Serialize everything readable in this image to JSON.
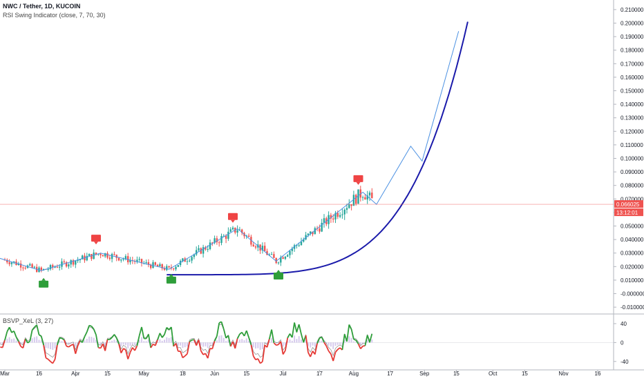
{
  "header": {
    "title": "NWC / Tether, 1D, KUCOIN",
    "indicator": "RSI Swing Indicator (close, 7, 70, 30)",
    "oscillator": "BSVP_XeL (3, 27)"
  },
  "price_badge": {
    "value": "0.066025",
    "countdown": "13:12:01"
  },
  "colors": {
    "up": "#26a69a",
    "down": "#ef5350",
    "trend_line": "#4a90e2",
    "curve": "#1a1aaa",
    "price_line": "#ef5350",
    "osc_green": "#2e9e3a",
    "osc_red": "#e53935",
    "signal_up": "#2e9e3a",
    "signal_down": "#ef4444"
  },
  "chart_data": {
    "type": "candlestick",
    "price_axis": {
      "ticks": [
        "0.210000",
        "0.200000",
        "0.190000",
        "0.180000",
        "0.170000",
        "0.160000",
        "0.150000",
        "0.140000",
        "0.130000",
        "0.120000",
        "0.110000",
        "0.100000",
        "0.090000",
        "0.080000",
        "0.070000",
        "0.060000",
        "0.050000",
        "0.040000",
        "0.030000",
        "0.020000",
        "0.010000",
        "-0.000000",
        "-0.010000"
      ],
      "ylim": [
        -0.013,
        0.213
      ]
    },
    "time_axis": {
      "ticks": [
        {
          "label": "Mar",
          "day": 0
        },
        {
          "label": "16",
          "day": 15
        },
        {
          "label": "Apr",
          "day": 31
        },
        {
          "label": "15",
          "day": 45
        },
        {
          "label": "May",
          "day": 61
        },
        {
          "label": "18",
          "day": 78
        },
        {
          "label": "Jun",
          "day": 92
        },
        {
          "label": "15",
          "day": 106
        },
        {
          "label": "Jul",
          "day": 122
        },
        {
          "label": "17",
          "day": 138
        },
        {
          "label": "Aug",
          "day": 153
        },
        {
          "label": "17",
          "day": 169
        },
        {
          "label": "Sep",
          "day": 184
        },
        {
          "label": "15",
          "day": 198
        },
        {
          "label": "Oct",
          "day": 214
        },
        {
          "label": "15",
          "day": 228
        },
        {
          "label": "Nov",
          "day": 245
        },
        {
          "label": "16",
          "day": 260
        }
      ]
    },
    "swing_line": [
      {
        "day": -8,
        "price": 0.029
      },
      {
        "day": 16,
        "price": 0.017
      },
      {
        "day": 42,
        "price": 0.03
      },
      {
        "day": 72,
        "price": 0.018
      },
      {
        "day": 102,
        "price": 0.048
      },
      {
        "day": 119,
        "price": 0.024
      },
      {
        "day": 157,
        "price": 0.075
      },
      {
        "day": 163,
        "price": 0.066
      },
      {
        "day": 178,
        "price": 0.109
      },
      {
        "day": 183,
        "price": 0.098
      },
      {
        "day": 199,
        "price": 0.194
      }
    ],
    "parabolic_curve": {
      "start_day": 71,
      "end_day": 203,
      "base": 0.014,
      "top": 0.201
    },
    "sell_signals": [
      {
        "day": 40,
        "price": 0.041
      },
      {
        "day": 100,
        "price": 0.057
      },
      {
        "day": 155,
        "price": 0.085
      }
    ],
    "buy_signals": [
      {
        "day": 17,
        "price": 0.007
      },
      {
        "day": 73,
        "price": 0.01
      },
      {
        "day": 120,
        "price": 0.013
      }
    ],
    "current_price": 0.066025,
    "oscillator_axis": {
      "ticks": [
        "40",
        "0",
        "-40"
      ],
      "ylim": [
        -52,
        56
      ]
    }
  }
}
